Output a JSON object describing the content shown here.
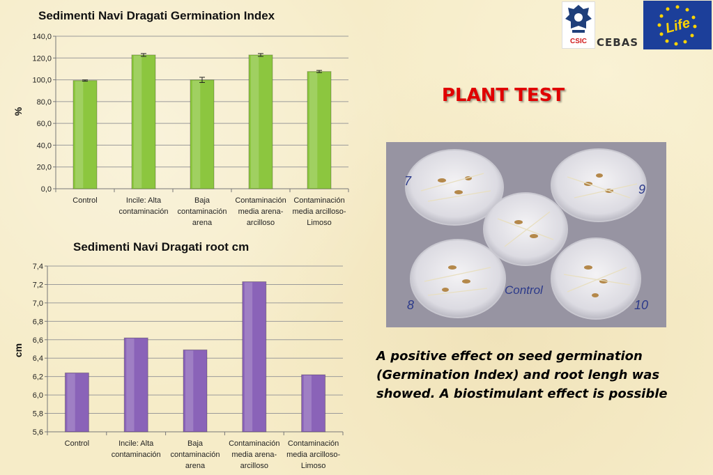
{
  "chart_data": [
    {
      "type": "bar",
      "title": "Sedimenti Navi Dragati Germination Index",
      "ylabel": "%",
      "xlabel": "",
      "ylim": [
        0,
        140
      ],
      "ytick_labels": [
        "0,0",
        "20,0",
        "40,0",
        "60,0",
        "80,0",
        "100,0",
        "120,0",
        "140,0"
      ],
      "categories": [
        [
          "Control"
        ],
        [
          "Incile: Alta",
          "contaminación"
        ],
        [
          "Baja",
          "contaminación",
          "arena"
        ],
        [
          "Contaminación",
          "media arena-",
          "arcilloso"
        ],
        [
          "Contaminación",
          "media arcilloso-",
          "Limoso"
        ]
      ],
      "values": [
        99.3,
        122.8,
        99.9,
        122.8,
        107.6
      ],
      "errors": [
        0.6,
        1.3,
        2.4,
        1.3,
        1.0
      ],
      "color": "#8cc63f",
      "grid": true,
      "legend": "none"
    },
    {
      "type": "bar",
      "title": "Sedimenti Navi Dragati root cm",
      "ylabel": "cm",
      "xlabel": "",
      "ylim": [
        5.6,
        7.4
      ],
      "ytick_labels": [
        "5,6",
        "5,8",
        "6,0",
        "6,2",
        "6,4",
        "6,6",
        "6,8",
        "7,0",
        "7,2",
        "7,4"
      ],
      "categories": [
        [
          "Control"
        ],
        [
          "Incile: Alta",
          "contaminación"
        ],
        [
          "Baja",
          "contaminación",
          "arena"
        ],
        [
          "Contaminación",
          "media arena-",
          "arcilloso"
        ],
        [
          "Contaminación",
          "media arcilloso-",
          "Limoso"
        ]
      ],
      "values": [
        6.24,
        6.62,
        6.49,
        7.23,
        6.22
      ],
      "color": "#8a63b8",
      "grid": true,
      "legend": "none"
    }
  ],
  "logos": {
    "csic": "CSIC",
    "cebas": "CEBAS",
    "life": "Life"
  },
  "plant_test_title": "PLANT TEST",
  "photo": {
    "dish_labels": [
      "7",
      "9",
      "8",
      "10",
      "Control"
    ]
  },
  "conclusion": "A positive effect on seed germination (Germination Index) and root lengh was showed. A biostimulant effect is possible"
}
